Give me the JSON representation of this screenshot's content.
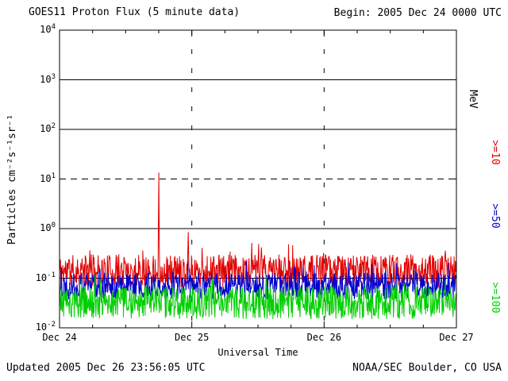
{
  "header": {
    "title": "GOES11 Proton Flux (5 minute data)",
    "begin_label": "Begin: 2005 Dec 24 0000 UTC"
  },
  "footer": {
    "updated": "Updated 2005 Dec 26 23:56:05 UTC",
    "source": "NOAA/SEC Boulder, CO USA"
  },
  "chart_data": {
    "type": "line",
    "title": "GOES11 Proton Flux (5 minute data)",
    "xlabel": "Universal Time",
    "ylabel": "Particles cm⁻²s⁻¹sr⁻¹",
    "right_unit_label": "MeV",
    "x_days": [
      "Dec 24",
      "Dec 25",
      "Dec 26",
      "Dec 27"
    ],
    "days_span": 3,
    "points_per_day": 288,
    "y_scale": "log10",
    "y_log_min": -2,
    "y_log_max": 4,
    "y_tick_exponents": [
      4,
      3,
      2,
      1,
      0,
      -1,
      -2
    ],
    "solid_gridline_exponents": [
      3,
      2,
      0,
      -1
    ],
    "dashed_gridline_exponents": [
      1
    ],
    "vertical_gridline_days": [
      1,
      2
    ],
    "grid_color": "#000000",
    "series": [
      {
        "name": ">=10",
        "color": "#e10000",
        "baseline_flux": 0.14,
        "noise_decades": 0.33,
        "seed": 11,
        "spikes": [
          {
            "day": 0.75,
            "flux": 13.5
          },
          {
            "day": 0.975,
            "flux": 0.85
          }
        ]
      },
      {
        "name": ">=50",
        "color": "#0000cf",
        "baseline_flux": 0.07,
        "noise_decades": 0.27,
        "seed": 22,
        "spikes": []
      },
      {
        "name": ">=100",
        "color": "#00ce00",
        "baseline_flux": 0.032,
        "noise_decades": 0.33,
        "seed": 33,
        "spikes": []
      }
    ]
  }
}
